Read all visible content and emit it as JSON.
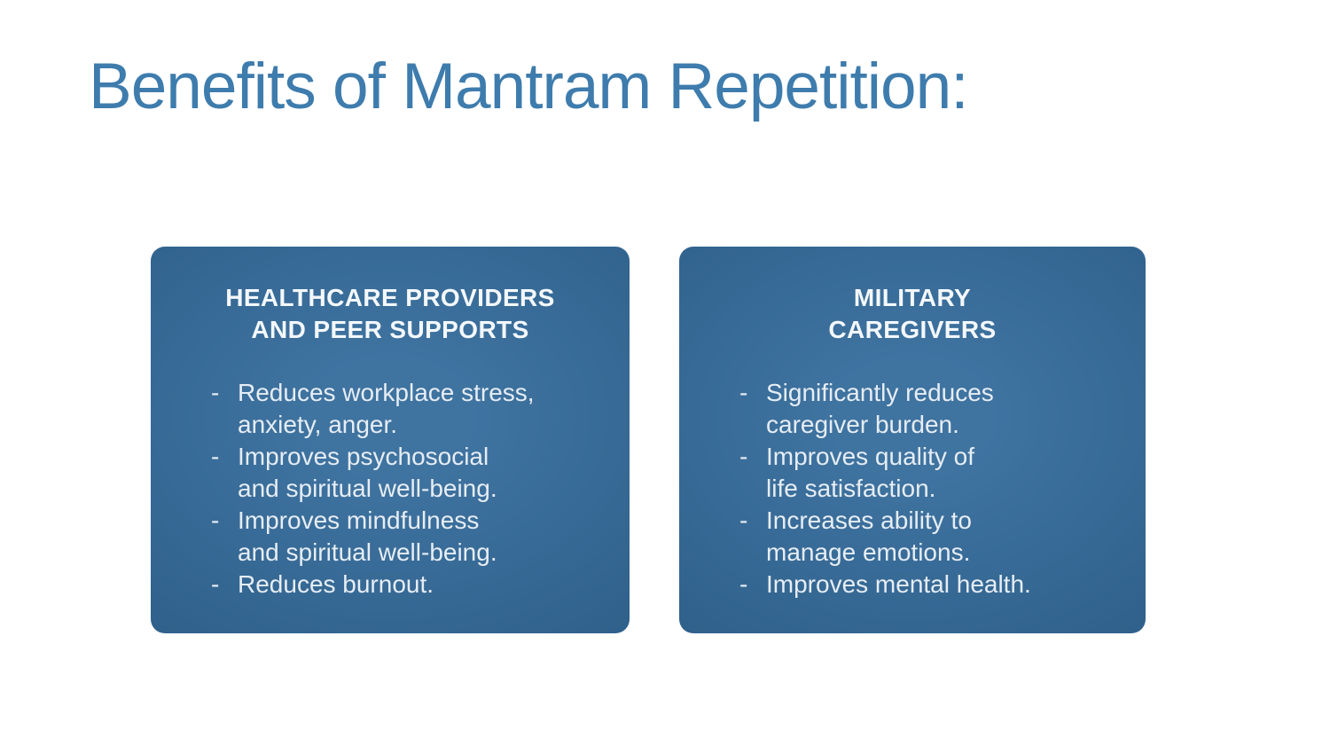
{
  "slide": {
    "title": "Benefits of Mantram Repetition:",
    "bullet_marker": "-",
    "colors": {
      "background": "#ffffff",
      "title": "#3e7cad",
      "box_center": "#3f73a0",
      "box_edge": "#2b5c86",
      "heading_text": "#f4f8fb",
      "body_text": "#e6edf4"
    },
    "boxes": [
      {
        "id": "healthcare-providers",
        "heading_lines": [
          "HEALTHCARE PROVIDERS",
          "AND PEER SUPPORTS"
        ],
        "bullets": [
          [
            "Reduces workplace stress,",
            "anxiety, anger."
          ],
          [
            "Improves psychosocial",
            "and spiritual well-being."
          ],
          [
            "Improves mindfulness",
            "and spiritual well-being."
          ],
          [
            "Reduces burnout."
          ]
        ]
      },
      {
        "id": "military-caregivers",
        "heading_lines": [
          "MILITARY",
          "CAREGIVERS"
        ],
        "bullets": [
          [
            "Significantly reduces",
            "caregiver burden."
          ],
          [
            "Improves quality of",
            "life satisfaction."
          ],
          [
            "Increases ability to",
            "manage emotions."
          ],
          [
            "Improves mental health."
          ]
        ]
      }
    ]
  }
}
